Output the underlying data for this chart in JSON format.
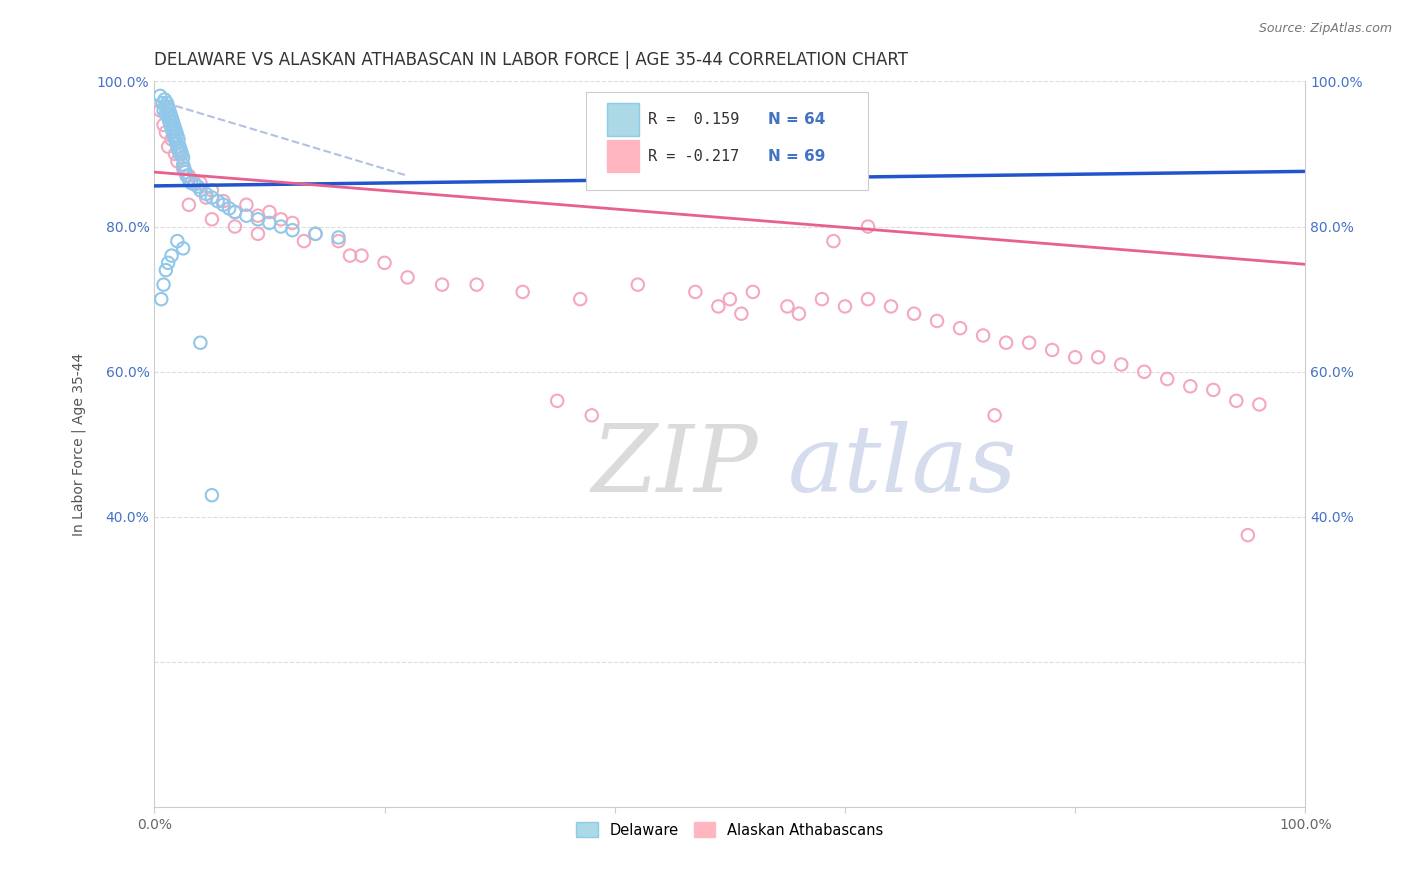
{
  "title": "DELAWARE VS ALASKAN ATHABASCAN IN LABOR FORCE | AGE 35-44 CORRELATION CHART",
  "source_text": "Source: ZipAtlas.com",
  "ylabel": "In Labor Force | Age 35-44",
  "xlim": [
    0.0,
    1.0
  ],
  "ylim": [
    0.0,
    1.0
  ],
  "xtick_vals": [
    0.0,
    0.2,
    0.4,
    0.6,
    0.8,
    1.0
  ],
  "ytick_vals": [
    0.0,
    0.2,
    0.4,
    0.6,
    0.8,
    1.0
  ],
  "xtick_labels": [
    "0.0%",
    "",
    "",
    "",
    "",
    "100.0%"
  ],
  "ytick_labels": [
    "",
    "",
    "40.0%",
    "60.0%",
    "80.0%",
    "100.0%"
  ],
  "watermark_zip": "ZIP",
  "watermark_atlas": "atlas",
  "delaware_color": "#91C7E8",
  "athabascan_color": "#F4A8BE",
  "blue_line_color": "#2255CC",
  "pink_line_color": "#E86090",
  "ref_line_color": "#AABBDD",
  "grid_color": "#DDDDDD",
  "background_color": "#FFFFFF",
  "title_fontsize": 12,
  "axis_fontsize": 10,
  "tick_fontsize": 10,
  "source_fontsize": 9,
  "marker_size": 80,
  "marker_linewidth": 1.5,
  "blue_line_start_y": 0.856,
  "blue_line_end_y": 0.876,
  "pink_line_start_y": 0.875,
  "pink_line_end_y": 0.748,
  "ref_line_x0": 0.0,
  "ref_line_y0": 0.975,
  "ref_line_x1": 0.22,
  "ref_line_y1": 0.87,
  "del_x": [
    0.005,
    0.007,
    0.008,
    0.009,
    0.01,
    0.01,
    0.011,
    0.011,
    0.012,
    0.012,
    0.013,
    0.013,
    0.014,
    0.014,
    0.015,
    0.015,
    0.016,
    0.016,
    0.017,
    0.017,
    0.018,
    0.018,
    0.019,
    0.019,
    0.02,
    0.02,
    0.021,
    0.021,
    0.022,
    0.022,
    0.023,
    0.024,
    0.025,
    0.025,
    0.026,
    0.027,
    0.028,
    0.03,
    0.032,
    0.035,
    0.038,
    0.04,
    0.045,
    0.05,
    0.055,
    0.06,
    0.065,
    0.07,
    0.08,
    0.09,
    0.1,
    0.11,
    0.12,
    0.14,
    0.16,
    0.02,
    0.025,
    0.015,
    0.012,
    0.01,
    0.008,
    0.006,
    0.04,
    0.05
  ],
  "del_y": [
    0.98,
    0.97,
    0.96,
    0.975,
    0.965,
    0.955,
    0.97,
    0.96,
    0.965,
    0.95,
    0.96,
    0.945,
    0.955,
    0.94,
    0.95,
    0.935,
    0.945,
    0.93,
    0.94,
    0.925,
    0.935,
    0.92,
    0.93,
    0.915,
    0.925,
    0.91,
    0.92,
    0.905,
    0.91,
    0.9,
    0.905,
    0.9,
    0.895,
    0.885,
    0.88,
    0.875,
    0.87,
    0.865,
    0.86,
    0.858,
    0.855,
    0.85,
    0.845,
    0.84,
    0.835,
    0.83,
    0.825,
    0.82,
    0.815,
    0.81,
    0.805,
    0.8,
    0.795,
    0.79,
    0.785,
    0.78,
    0.77,
    0.76,
    0.75,
    0.74,
    0.72,
    0.7,
    0.64,
    0.43
  ],
  "ath_x": [
    0.005,
    0.008,
    0.01,
    0.012,
    0.015,
    0.018,
    0.02,
    0.025,
    0.03,
    0.035,
    0.04,
    0.045,
    0.05,
    0.06,
    0.07,
    0.08,
    0.09,
    0.1,
    0.11,
    0.12,
    0.14,
    0.16,
    0.18,
    0.2,
    0.22,
    0.25,
    0.28,
    0.32,
    0.37,
    0.42,
    0.47,
    0.5,
    0.52,
    0.55,
    0.56,
    0.58,
    0.6,
    0.62,
    0.64,
    0.66,
    0.68,
    0.7,
    0.72,
    0.74,
    0.76,
    0.78,
    0.8,
    0.82,
    0.84,
    0.86,
    0.88,
    0.9,
    0.92,
    0.94,
    0.96,
    0.03,
    0.05,
    0.07,
    0.09,
    0.13,
    0.17,
    0.35,
    0.38,
    0.49,
    0.51,
    0.59,
    0.62,
    0.73,
    0.95
  ],
  "ath_y": [
    0.96,
    0.94,
    0.93,
    0.91,
    0.92,
    0.9,
    0.89,
    0.88,
    0.87,
    0.86,
    0.86,
    0.84,
    0.85,
    0.835,
    0.82,
    0.83,
    0.815,
    0.82,
    0.81,
    0.805,
    0.79,
    0.78,
    0.76,
    0.75,
    0.73,
    0.72,
    0.72,
    0.71,
    0.7,
    0.72,
    0.71,
    0.7,
    0.71,
    0.69,
    0.68,
    0.7,
    0.69,
    0.7,
    0.69,
    0.68,
    0.67,
    0.66,
    0.65,
    0.64,
    0.64,
    0.63,
    0.62,
    0.62,
    0.61,
    0.6,
    0.59,
    0.58,
    0.575,
    0.56,
    0.555,
    0.83,
    0.81,
    0.8,
    0.79,
    0.78,
    0.76,
    0.56,
    0.54,
    0.69,
    0.68,
    0.78,
    0.8,
    0.54,
    0.375
  ]
}
